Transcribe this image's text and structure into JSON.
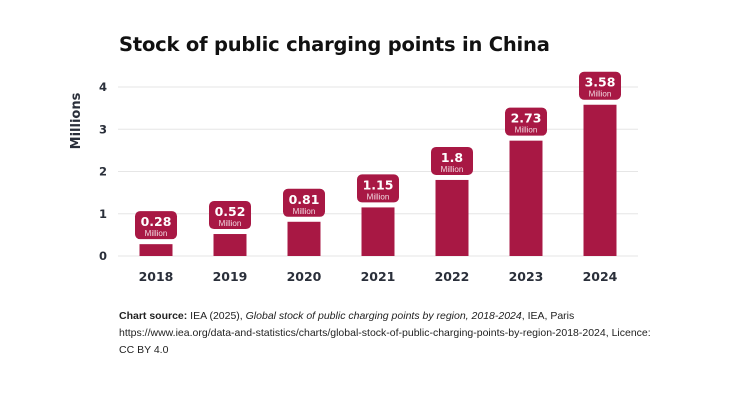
{
  "chart_data": {
    "type": "bar",
    "title": "Stock of public charging points in China",
    "xlabel": "",
    "ylabel": "Millions",
    "ylim": [
      0,
      4
    ],
    "yticks": [
      "0",
      "1",
      "2",
      "3",
      "4"
    ],
    "grid": true,
    "categories": [
      "2018",
      "2019",
      "2020",
      "2021",
      "2022",
      "2023",
      "2024"
    ],
    "values": [
      0.28,
      0.52,
      0.81,
      1.15,
      1.8,
      2.73,
      3.58
    ],
    "data_labels": [
      "0.28",
      "0.52",
      "0.81",
      "1.15",
      "1.8",
      "2.73",
      "3.58"
    ],
    "data_label_unit": "Million",
    "bar_color": "#a81844"
  },
  "source": {
    "label": "Chart source:",
    "pre": " IEA (2025), ",
    "italic": "Global stock of public charging points by region, 2018-2024",
    "post": ", IEA, Paris https://www.iea.org/data-and-statistics/charts/global-stock-of-public-charging-points-by-region-2018-2024, Licence: CC BY 4.0"
  }
}
